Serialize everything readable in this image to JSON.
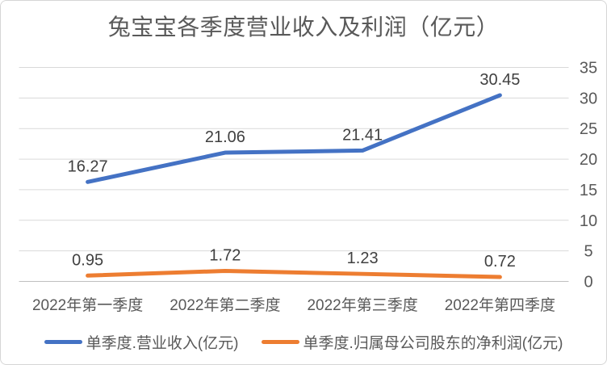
{
  "chart_data": {
    "type": "line",
    "title": "兔宝宝各季度营业收入及利润（亿元）",
    "categories": [
      "2022年第一季度",
      "2022年第二季度",
      "2022年第三季度",
      "2022年第四季度"
    ],
    "series": [
      {
        "name": "单季度.营业收入(亿元)",
        "color": "#4472C4",
        "values": [
          16.27,
          21.06,
          21.41,
          30.45
        ],
        "labels": [
          "16.27",
          "21.06",
          "21.41",
          "30.45"
        ]
      },
      {
        "name": "单季度.归属母公司股东的净利润(亿元)",
        "color": "#ED7D31",
        "values": [
          0.95,
          1.72,
          1.23,
          0.72
        ],
        "labels": [
          "0.95",
          "1.72",
          "1.23",
          "0.72"
        ]
      }
    ],
    "y_axis": {
      "min": 0,
      "max": 35,
      "step": 5,
      "ticks": [
        "0",
        "5",
        "10",
        "15",
        "20",
        "25",
        "30",
        "35"
      ],
      "side": "right"
    },
    "grid": true,
    "legend_position": "bottom",
    "colors": {
      "gridline": "#D9D9D9",
      "axis_line": "#C0C0C0",
      "tick_text": "#595959",
      "category_text": "#595959",
      "data_label_text": "#404040",
      "title_text": "#595959",
      "legend_text": "#595959",
      "background": "#FFFFFF",
      "border": "#D6D6D6"
    }
  }
}
